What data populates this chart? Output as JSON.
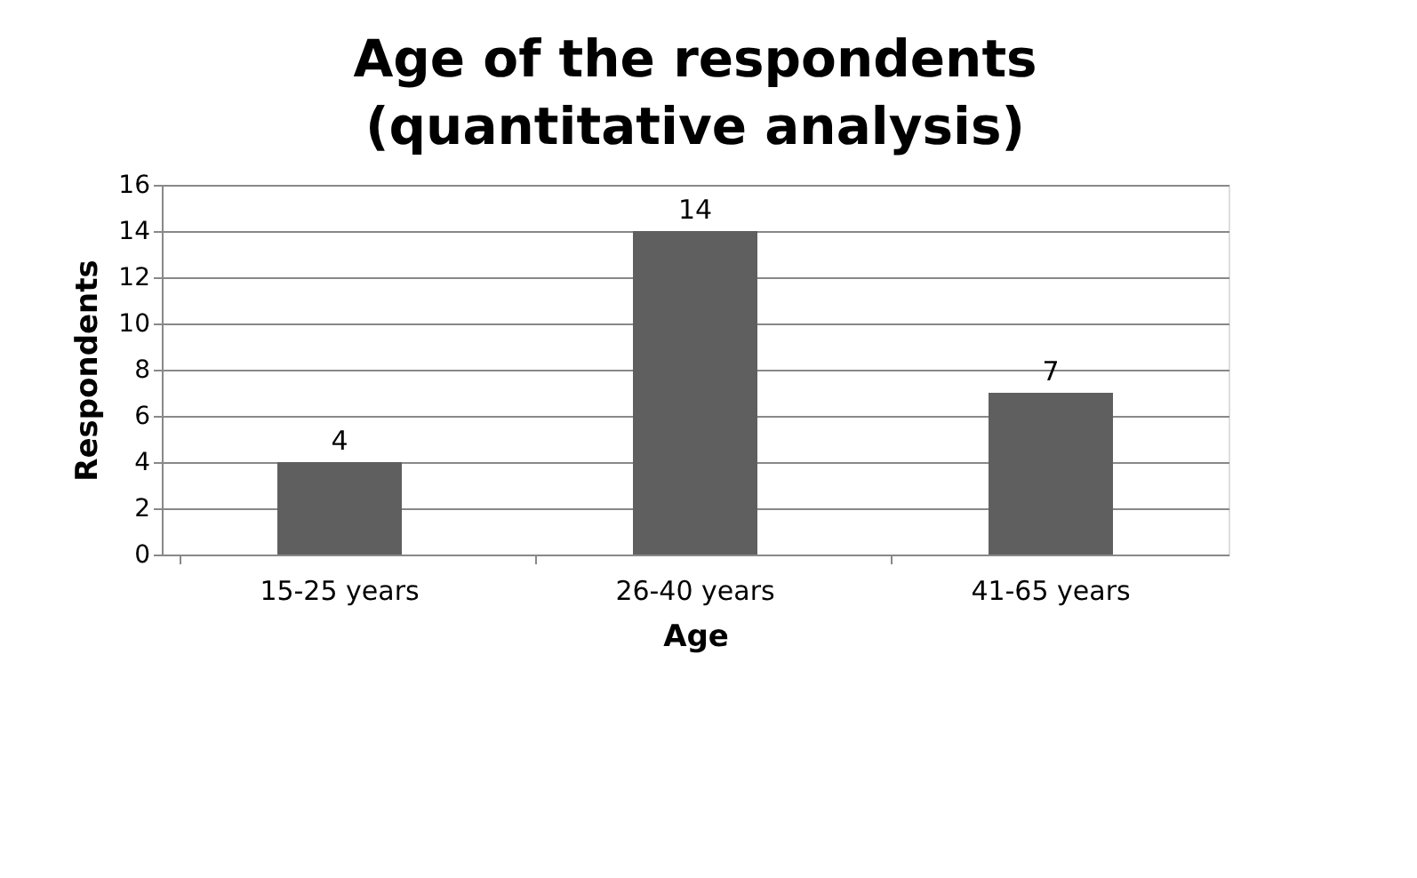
{
  "chart_data": {
    "type": "bar",
    "title": [
      "Age of the respondents",
      "(quantitative analysis)"
    ],
    "xlabel": "Age",
    "ylabel": "Respondents",
    "categories": [
      "15-25 years",
      "26-40 years",
      "41-65 years"
    ],
    "values": [
      4,
      14,
      7
    ],
    "color": "#5f5f5f",
    "ylim": [
      0,
      16
    ],
    "yticks": [
      0,
      2,
      4,
      6,
      8,
      10,
      12,
      14,
      16
    ],
    "grid": "y",
    "data_labels": true
  }
}
